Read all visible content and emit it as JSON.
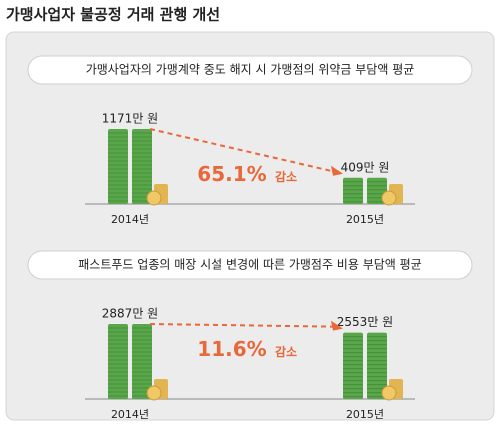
{
  "title": "가맹사업자 불공정 거래 관행 개선",
  "chart_data": [
    {
      "type": "bar",
      "title": "가맹사업자의 가맹계약 중도 해지 시 가맹점의 위약금 부담액 평균",
      "categories": [
        "2014년",
        "2015년"
      ],
      "values": [
        1171,
        409
      ],
      "value_labels": [
        "1171만 원",
        "409만 원"
      ],
      "annotation": "65.1%",
      "annotation_suffix": "감소",
      "color": "#5aa64a"
    },
    {
      "type": "bar",
      "title": "패스트푸드 업종의 매장 시설 변경에 따른 가맹점주 비용 부담액 평균",
      "categories": [
        "2014년",
        "2015년"
      ],
      "values": [
        2887,
        2553
      ],
      "value_labels": [
        "2887만 원",
        "2553만 원"
      ],
      "annotation": "11.6%",
      "annotation_suffix": "감소",
      "color": "#5aa64a"
    }
  ]
}
